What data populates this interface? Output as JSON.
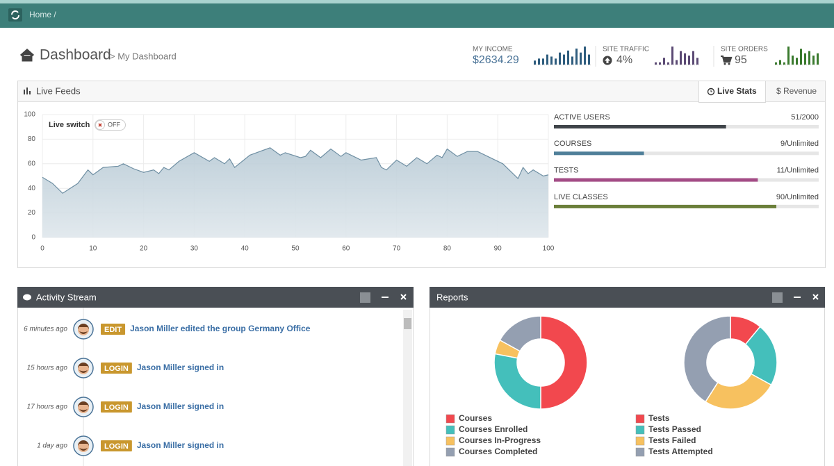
{
  "breadcrumb": "Home /",
  "header": {
    "title": "Dashboard",
    "subtitle": "> My Dashboard"
  },
  "stats": [
    {
      "label": "MY INCOME",
      "value": "$2634.29",
      "color": "#2f5d7e",
      "spark": [
        2,
        3,
        3,
        5,
        4,
        3,
        6,
        5,
        7,
        4,
        8,
        6,
        9,
        5
      ]
    },
    {
      "label": "SITE TRAFFIC",
      "value": "4%",
      "color": "#5b4a74",
      "spark": [
        1,
        1,
        3,
        1,
        8,
        2,
        6,
        5,
        4,
        6,
        3
      ]
    },
    {
      "label": "SITE ORDERS",
      "value": "95",
      "color": "#3a7a2e",
      "spark": [
        1,
        2,
        1,
        8,
        4,
        3,
        7,
        5,
        6,
        4,
        5
      ]
    }
  ],
  "live_feeds": {
    "title": "Live Feeds",
    "tabs": [
      "Live Stats",
      "$ Revenue"
    ],
    "switch_label": "Live switch",
    "switch_state": "OFF",
    "chart": {
      "type": "area",
      "x": [
        0,
        2,
        4,
        7,
        9,
        10,
        12,
        15,
        16,
        18,
        20,
        22,
        23,
        24,
        25,
        27,
        30,
        33,
        34,
        36,
        37,
        38,
        41,
        43,
        45,
        47,
        48,
        51,
        52,
        53,
        55,
        57,
        59,
        60,
        63,
        66,
        67,
        68,
        70,
        72,
        74,
        76,
        78,
        79,
        80,
        82,
        84,
        86,
        88,
        91,
        94,
        95,
        96,
        97,
        99,
        100
      ],
      "values": [
        49,
        44,
        36,
        44,
        55,
        51,
        57,
        58,
        60,
        56,
        53,
        55,
        52,
        57,
        55,
        62,
        69,
        62,
        65,
        60,
        64,
        57,
        67,
        70,
        73,
        67,
        69,
        65,
        66,
        71,
        65,
        72,
        66,
        69,
        63,
        65,
        57,
        55,
        63,
        58,
        65,
        60,
        67,
        65,
        72,
        66,
        70,
        70,
        66,
        60,
        48,
        57,
        52,
        55,
        50,
        51
      ],
      "xlim": [
        0,
        100
      ],
      "ylim": [
        0,
        100
      ],
      "xticks": [
        0,
        10,
        20,
        30,
        40,
        50,
        60,
        70,
        80,
        90,
        100
      ],
      "yticks": [
        0,
        20,
        40,
        60,
        80,
        100
      ],
      "grid": true,
      "color": "#6f8fa3"
    }
  },
  "live_stats": [
    {
      "label": "ACTIVE USERS",
      "value": "51/2000",
      "percent": 65,
      "color": "#3f4449"
    },
    {
      "label": "COURSES",
      "value": "9/Unlimited",
      "percent": 34,
      "color": "#4f7f99"
    },
    {
      "label": "TESTS",
      "value": "11/Unlimited",
      "percent": 77,
      "color": "#a44c86"
    },
    {
      "label": "LIVE CLASSES",
      "value": "90/Unlimited",
      "percent": 84,
      "color": "#6b7f3a"
    }
  ],
  "activity": {
    "title": "Activity Stream",
    "items": [
      {
        "time": "6 minutes ago",
        "badge": "EDIT",
        "text": "Jason Miller edited the group Germany Office"
      },
      {
        "time": "15 hours ago",
        "badge": "LOGIN",
        "text": "Jason Miller signed in"
      },
      {
        "time": "17 hours ago",
        "badge": "LOGIN",
        "text": "Jason Miller signed in"
      },
      {
        "time": "1 day ago",
        "badge": "LOGIN",
        "text": "Jason Miller signed in"
      }
    ]
  },
  "reports": {
    "title": "Reports",
    "charts": [
      {
        "type": "donut",
        "categories": [
          "Courses",
          "Courses Enrolled",
          "Courses In-Progress",
          "Courses Completed"
        ],
        "values": [
          50,
          28,
          5,
          17
        ],
        "colors": [
          "#f2484e",
          "#44bfbb",
          "#f7c15f",
          "#949fb1"
        ]
      },
      {
        "type": "donut",
        "categories": [
          "Tests",
          "Tests Passed",
          "Tests Failed",
          "Tests Attempted"
        ],
        "values": [
          11,
          22,
          26,
          41
        ],
        "colors": [
          "#f2484e",
          "#44bfbb",
          "#f7c15f",
          "#949fb1"
        ]
      }
    ]
  }
}
